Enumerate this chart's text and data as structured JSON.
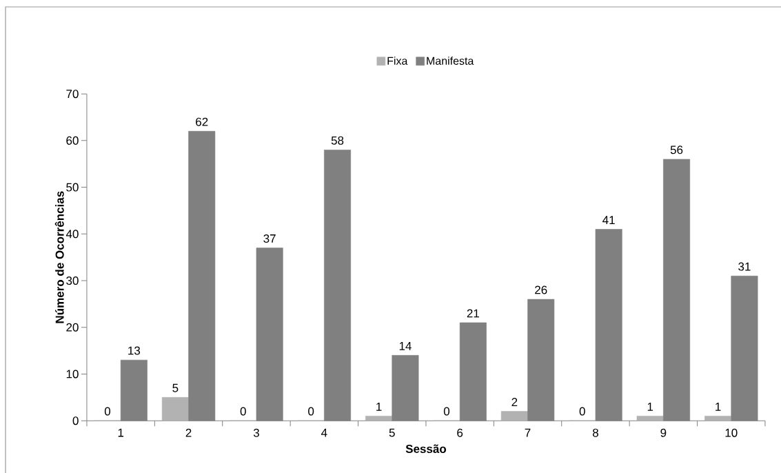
{
  "chart_data": {
    "type": "bar",
    "xlabel": "Sessão",
    "ylabel": "Número de Ocorrências",
    "categories": [
      "1",
      "2",
      "3",
      "4",
      "5",
      "6",
      "7",
      "8",
      "9",
      "10"
    ],
    "series": [
      {
        "name": "Fixa",
        "color": "#b2b2b2",
        "values": [
          0,
          5,
          0,
          0,
          1,
          0,
          2,
          0,
          1,
          1
        ]
      },
      {
        "name": "Manifesta",
        "color": "#808080",
        "values": [
          13,
          62,
          37,
          58,
          14,
          21,
          26,
          41,
          56,
          31
        ]
      }
    ],
    "ylim": [
      0,
      70
    ],
    "yticks": [
      0,
      10,
      20,
      30,
      40,
      50,
      60,
      70
    ],
    "data_labels": true,
    "legend": "top"
  }
}
